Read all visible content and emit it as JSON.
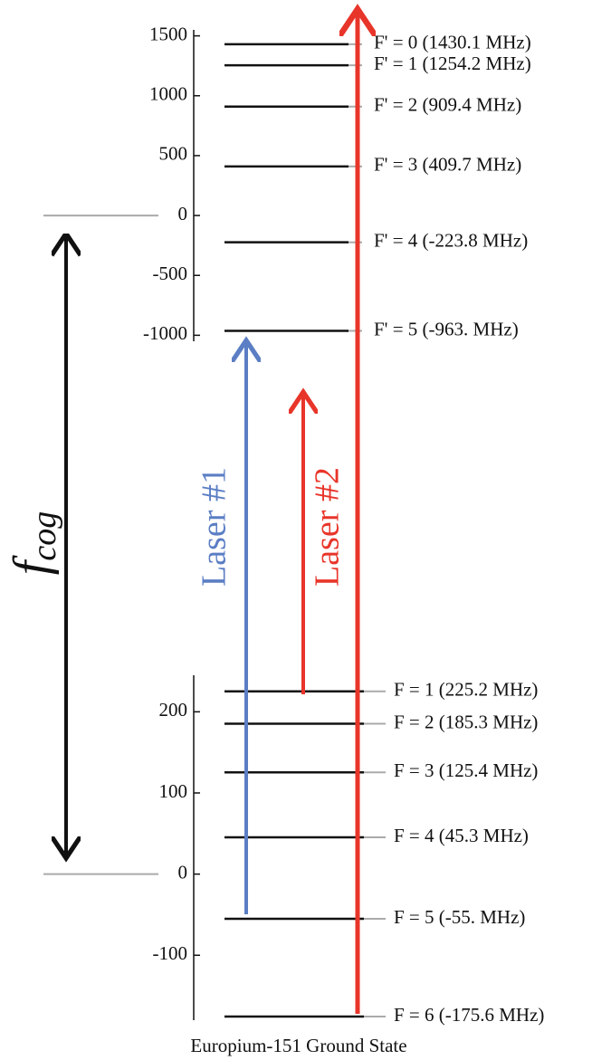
{
  "chart_data": [
    {
      "type": "levels",
      "ylim": [
        -1050,
        1550
      ],
      "yticks": [
        -1000,
        -500,
        0,
        500,
        1000,
        1500
      ],
      "values": [
        1430.1,
        1254.2,
        909.4,
        409.7,
        -223.8,
        -963
      ],
      "value_labels": [
        "F' = 0 (1430.1 MHz)",
        "F' = 1 (1254.2 MHz)",
        "F' = 2 (909.4 MHz)",
        "F' = 3 (409.7 MHz)",
        "F' = 4 (-223.8 MHz)",
        "F' = 5 (-963. MHz)"
      ]
    },
    {
      "type": "levels",
      "xlabel": "Europium-151 Ground State",
      "ylim": [
        -180,
        245
      ],
      "yticks": [
        -100,
        0,
        100,
        200
      ],
      "values": [
        225.2,
        185.3,
        125.4,
        45.3,
        -55,
        -175.6
      ],
      "value_labels": [
        "F = 1 (225.2 MHz)",
        "F = 2 (185.3 MHz)",
        "F = 3 (125.4 MHz)",
        "F = 4 (45.3 MHz)",
        "F = 5 (-55. MHz)",
        "F = 6 (-175.6 MHz)"
      ]
    }
  ],
  "annotations": {
    "center_of_gravity": [
      "f",
      "cog"
    ],
    "laser_1": "Laser #1",
    "laser_2": "Laser #2"
  }
}
